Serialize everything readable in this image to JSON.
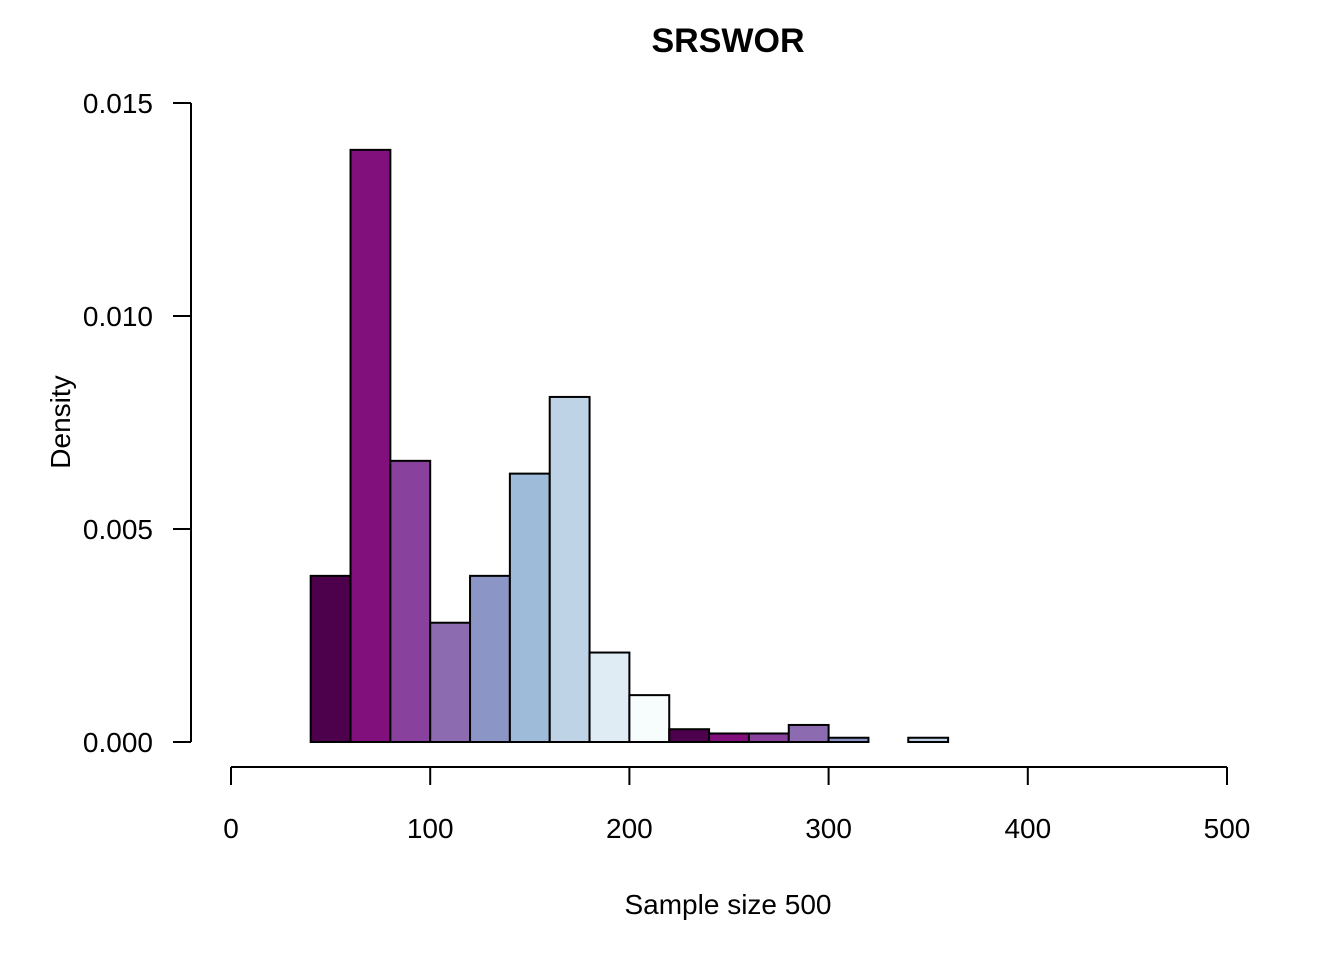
{
  "chart_data": {
    "type": "bar",
    "title": "SRSWOR",
    "xlabel": "Sample size 500",
    "ylabel": "Density",
    "xlim": [
      0,
      500
    ],
    "ylim": [
      0,
      0.015
    ],
    "x_ticks": [
      0,
      100,
      200,
      300,
      400,
      500
    ],
    "x_tick_labels": [
      "0",
      "100",
      "200",
      "300",
      "400",
      "500"
    ],
    "y_ticks": [
      0,
      0.005,
      0.01,
      0.015
    ],
    "y_tick_labels": [
      "0.000",
      "0.005",
      "0.010",
      "0.015"
    ],
    "grid": false,
    "legend": "none",
    "bins": [
      {
        "start": 40,
        "end": 60,
        "density": 0.0039,
        "color": "#4d004b"
      },
      {
        "start": 60,
        "end": 80,
        "density": 0.0139,
        "color": "#810f7c"
      },
      {
        "start": 80,
        "end": 100,
        "density": 0.0066,
        "color": "#88419d"
      },
      {
        "start": 100,
        "end": 120,
        "density": 0.0028,
        "color": "#8c6bb1"
      },
      {
        "start": 120,
        "end": 140,
        "density": 0.0039,
        "color": "#8c96c6"
      },
      {
        "start": 140,
        "end": 160,
        "density": 0.0063,
        "color": "#9ebcda"
      },
      {
        "start": 160,
        "end": 180,
        "density": 0.0081,
        "color": "#bfd3e6"
      },
      {
        "start": 180,
        "end": 200,
        "density": 0.0021,
        "color": "#e0ecf4"
      },
      {
        "start": 200,
        "end": 220,
        "density": 0.0011,
        "color": "#f7fcfd"
      },
      {
        "start": 220,
        "end": 240,
        "density": 0.0003,
        "color": "#4d004b"
      },
      {
        "start": 240,
        "end": 260,
        "density": 0.0002,
        "color": "#810f7c"
      },
      {
        "start": 260,
        "end": 280,
        "density": 0.0002,
        "color": "#88419d"
      },
      {
        "start": 280,
        "end": 300,
        "density": 0.0004,
        "color": "#8c6bb1"
      },
      {
        "start": 300,
        "end": 320,
        "density": 0.0001,
        "color": "#8c96c6"
      },
      {
        "start": 320,
        "end": 340,
        "density": 0.0,
        "color": "#9ebcda"
      },
      {
        "start": 340,
        "end": 360,
        "density": 0.0001,
        "color": "#bfd3e6"
      }
    ]
  }
}
